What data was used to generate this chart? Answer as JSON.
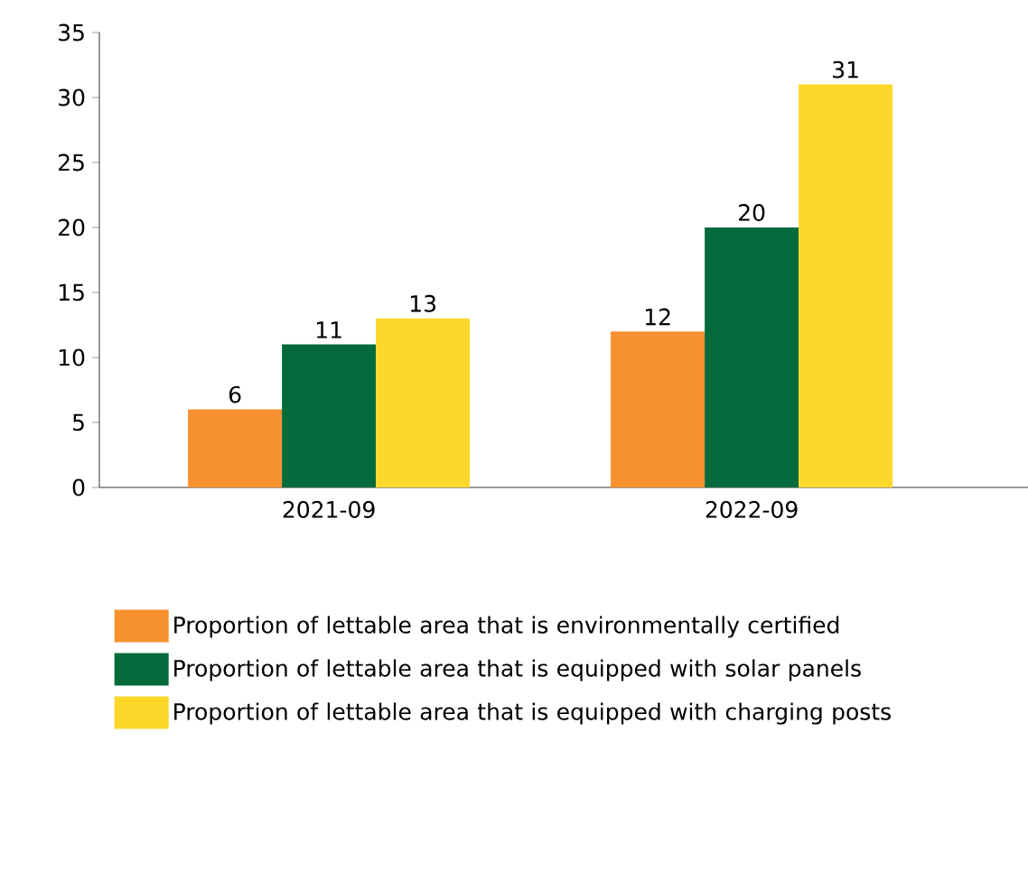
{
  "chart_data": {
    "type": "bar",
    "categories": [
      "2021-09",
      "2022-09"
    ],
    "series": [
      {
        "name": "Proportion of lettable area that is environmentally certified",
        "color": "#f7902f",
        "values": [
          6,
          12
        ]
      },
      {
        "name": "Proportion of lettable area that is equipped with solar panels",
        "color": "#036b3b",
        "values": [
          11,
          20
        ]
      },
      {
        "name": "Proportion of lettable area that is equipped with charging posts",
        "color": "#fcd82b",
        "values": [
          13,
          31
        ]
      }
    ],
    "ylim": [
      0,
      35
    ],
    "yticks": [
      0,
      5,
      10,
      15,
      20,
      25,
      30,
      35
    ],
    "data_labels": true,
    "legend": "bottom",
    "grid": false
  }
}
